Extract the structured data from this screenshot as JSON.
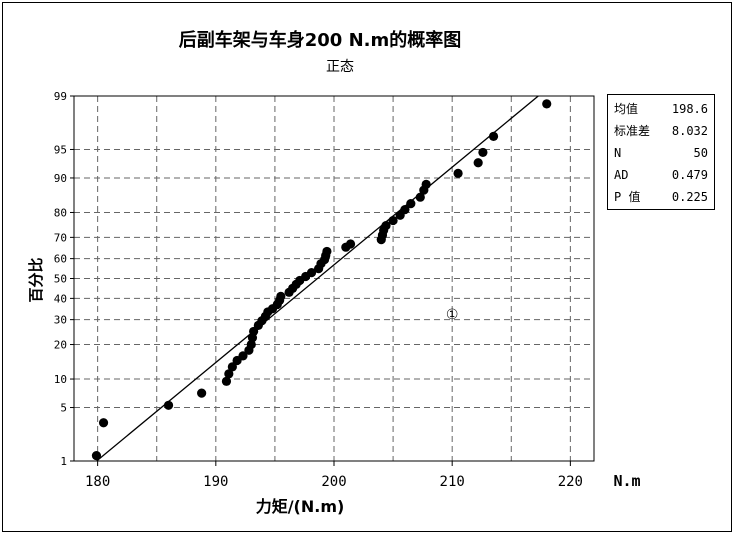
{
  "chart_data": {
    "type": "scatter",
    "title": "后副车架与车身200 N.m的概率图",
    "subtitle": "正态",
    "xlabel": "力矩/(N.m)",
    "ylabel": "百分比",
    "x_unit_label": "N.m",
    "xlim": [
      178,
      222
    ],
    "x_ticks": [
      180,
      190,
      200,
      210,
      220
    ],
    "y_scale": "normal-probability",
    "y_ticks": [
      1,
      5,
      10,
      20,
      30,
      40,
      50,
      60,
      70,
      80,
      90,
      95,
      99
    ],
    "grid": true,
    "fit_line": {
      "mean": 198.6,
      "stdev": 8.032
    },
    "series": [
      {
        "points": [
          {
            "x": 179.9,
            "y": 1.2
          },
          {
            "x": 180.5,
            "y": 3.3
          },
          {
            "x": 186.0,
            "y": 5.3
          },
          {
            "x": 188.8,
            "y": 7.2
          },
          {
            "x": 190.9,
            "y": 9.5
          },
          {
            "x": 191.1,
            "y": 11.2
          },
          {
            "x": 191.4,
            "y": 13.0
          },
          {
            "x": 191.8,
            "y": 14.8
          },
          {
            "x": 192.3,
            "y": 16.2
          },
          {
            "x": 192.8,
            "y": 18.0
          },
          {
            "x": 193.0,
            "y": 20.0
          },
          {
            "x": 193.1,
            "y": 22.5
          },
          {
            "x": 193.2,
            "y": 25.0
          },
          {
            "x": 193.6,
            "y": 27.5
          },
          {
            "x": 193.9,
            "y": 29.5
          },
          {
            "x": 194.2,
            "y": 31.5
          },
          {
            "x": 194.4,
            "y": 33.5
          },
          {
            "x": 194.8,
            "y": 35.0
          },
          {
            "x": 195.2,
            "y": 37.0
          },
          {
            "x": 195.4,
            "y": 39.0
          },
          {
            "x": 195.5,
            "y": 41.0
          },
          {
            "x": 196.2,
            "y": 43.0
          },
          {
            "x": 196.5,
            "y": 45.0
          },
          {
            "x": 196.8,
            "y": 47.0
          },
          {
            "x": 197.1,
            "y": 49.0
          },
          {
            "x": 197.6,
            "y": 51.0
          },
          {
            "x": 198.1,
            "y": 53.0
          },
          {
            "x": 198.7,
            "y": 55.0
          },
          {
            "x": 198.9,
            "y": 57.5
          },
          {
            "x": 199.2,
            "y": 59.5
          },
          {
            "x": 199.3,
            "y": 61.5
          },
          {
            "x": 199.4,
            "y": 63.5
          },
          {
            "x": 201.0,
            "y": 65.5
          },
          {
            "x": 201.4,
            "y": 67.0
          },
          {
            "x": 204.0,
            "y": 69.0
          },
          {
            "x": 204.1,
            "y": 71.0
          },
          {
            "x": 204.2,
            "y": 73.0
          },
          {
            "x": 204.4,
            "y": 75.0
          },
          {
            "x": 205.0,
            "y": 77.0
          },
          {
            "x": 205.6,
            "y": 79.0
          },
          {
            "x": 206.0,
            "y": 81.0
          },
          {
            "x": 206.5,
            "y": 83.0
          },
          {
            "x": 207.3,
            "y": 85.0
          },
          {
            "x": 207.6,
            "y": 87.0
          },
          {
            "x": 207.8,
            "y": 88.5
          },
          {
            "x": 210.5,
            "y": 91.0
          },
          {
            "x": 212.2,
            "y": 93.0
          },
          {
            "x": 212.6,
            "y": 94.6
          },
          {
            "x": 213.5,
            "y": 96.5
          },
          {
            "x": 218.0,
            "y": 98.7
          }
        ]
      }
    ],
    "annotation": "①",
    "annotation_point": {
      "x": 210,
      "y": 32
    },
    "stats": [
      {
        "label": "均值",
        "value": "198.6"
      },
      {
        "label": "标准差",
        "value": "8.032"
      },
      {
        "label": "N",
        "value": "50"
      },
      {
        "label": "AD",
        "value": "0.479"
      },
      {
        "label": "P 值",
        "value": "0.225"
      }
    ]
  },
  "colors": {
    "ink": "#000000",
    "grid": "#666666",
    "background": "#ffffff"
  }
}
